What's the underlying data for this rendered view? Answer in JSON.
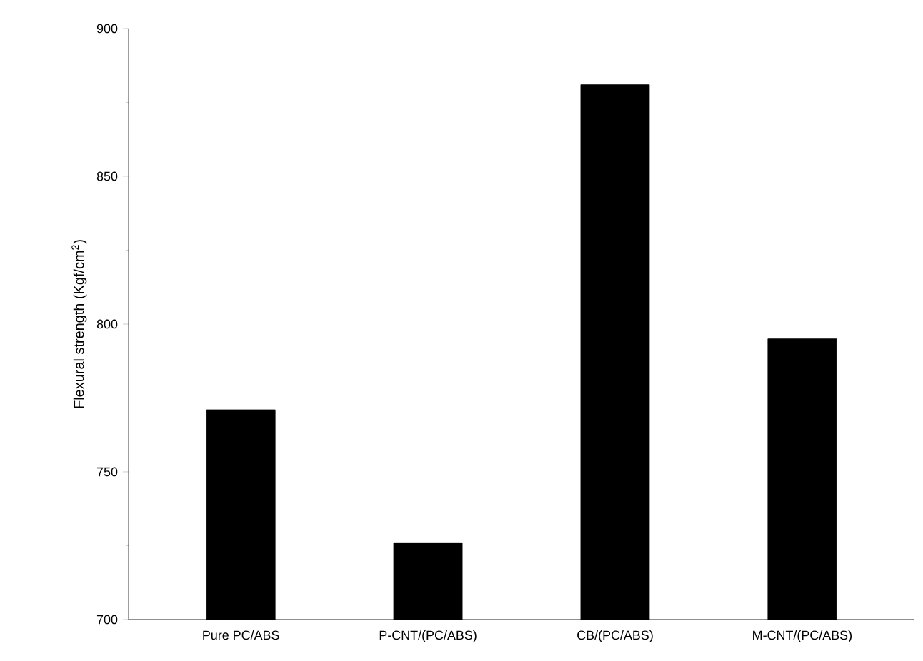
{
  "chart_data": {
    "type": "bar",
    "ylabel": "Flexural strength (Kgf/cm$^{2}$)",
    "categories": [
      "Pure PC/ABS",
      "P-CNT/(PC/ABS)",
      "CB/(PC/ABS)",
      "M-CNT/(PC/ABS)"
    ],
    "values": [
      771,
      726,
      881,
      795
    ],
    "color": "#000000",
    "ylim": [
      700,
      900
    ],
    "yticks": [
      700,
      750,
      800,
      850,
      900
    ],
    "grid": false
  }
}
